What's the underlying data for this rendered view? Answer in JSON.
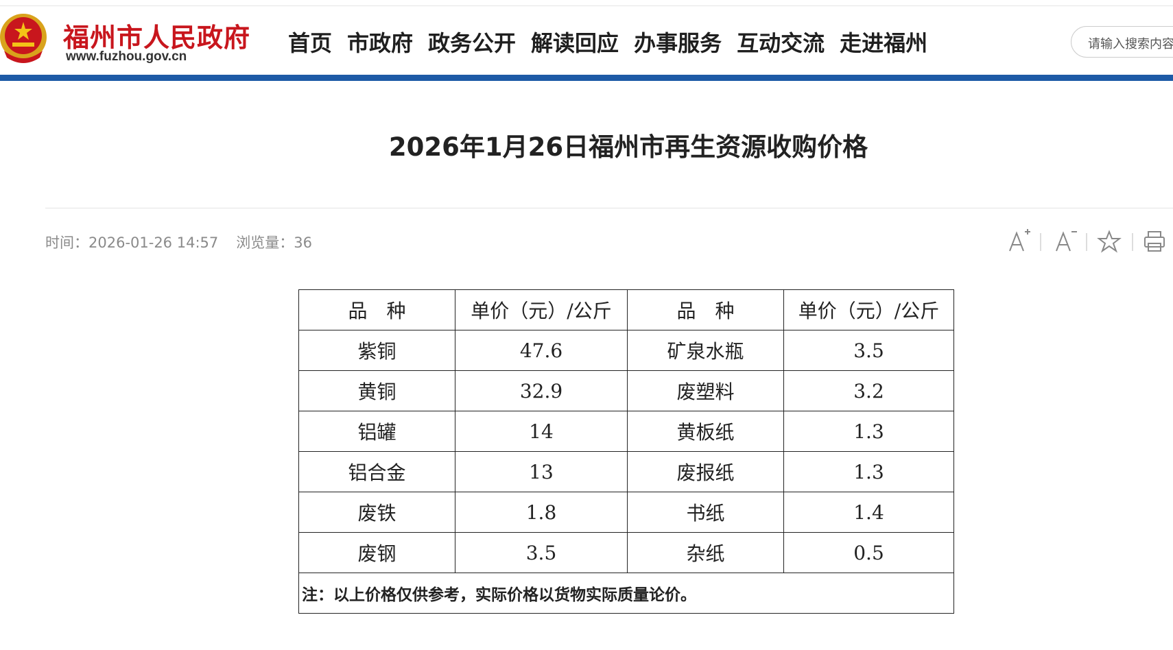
{
  "header": {
    "site_name": "福州市人民政府",
    "site_url": "www.fuzhou.gov.cn",
    "nav": [
      "首页",
      "市政府",
      "政务公开",
      "解读回应",
      "办事服务",
      "互动交流",
      "走进福州"
    ],
    "search_placeholder": "请输入搜索内容"
  },
  "article": {
    "title": "2026年1月26日福州市再生资源收购价格",
    "time": "时间：2026-01-26 14:57",
    "views": "浏览量：36"
  },
  "table": {
    "header": [
      "品　种",
      "单价（元）/公斤",
      "品　种",
      "单价（元）/公斤"
    ],
    "rows": [
      [
        "紫铜",
        "47.6",
        "矿泉水瓶",
        "3.5"
      ],
      [
        "黄铜",
        "32.9",
        "废塑料",
        "3.2"
      ],
      [
        "铝罐",
        "14",
        "黄板纸",
        "1.3"
      ],
      [
        "铝合金",
        "13",
        "废报纸",
        "1.3"
      ],
      [
        "废铁",
        "1.8",
        "书纸",
        "1.4"
      ],
      [
        "废钢",
        "3.5",
        "杂纸",
        "0.5"
      ]
    ],
    "note": "注：以上价格仅供参考，实际价格以货物实际质量论价。"
  }
}
